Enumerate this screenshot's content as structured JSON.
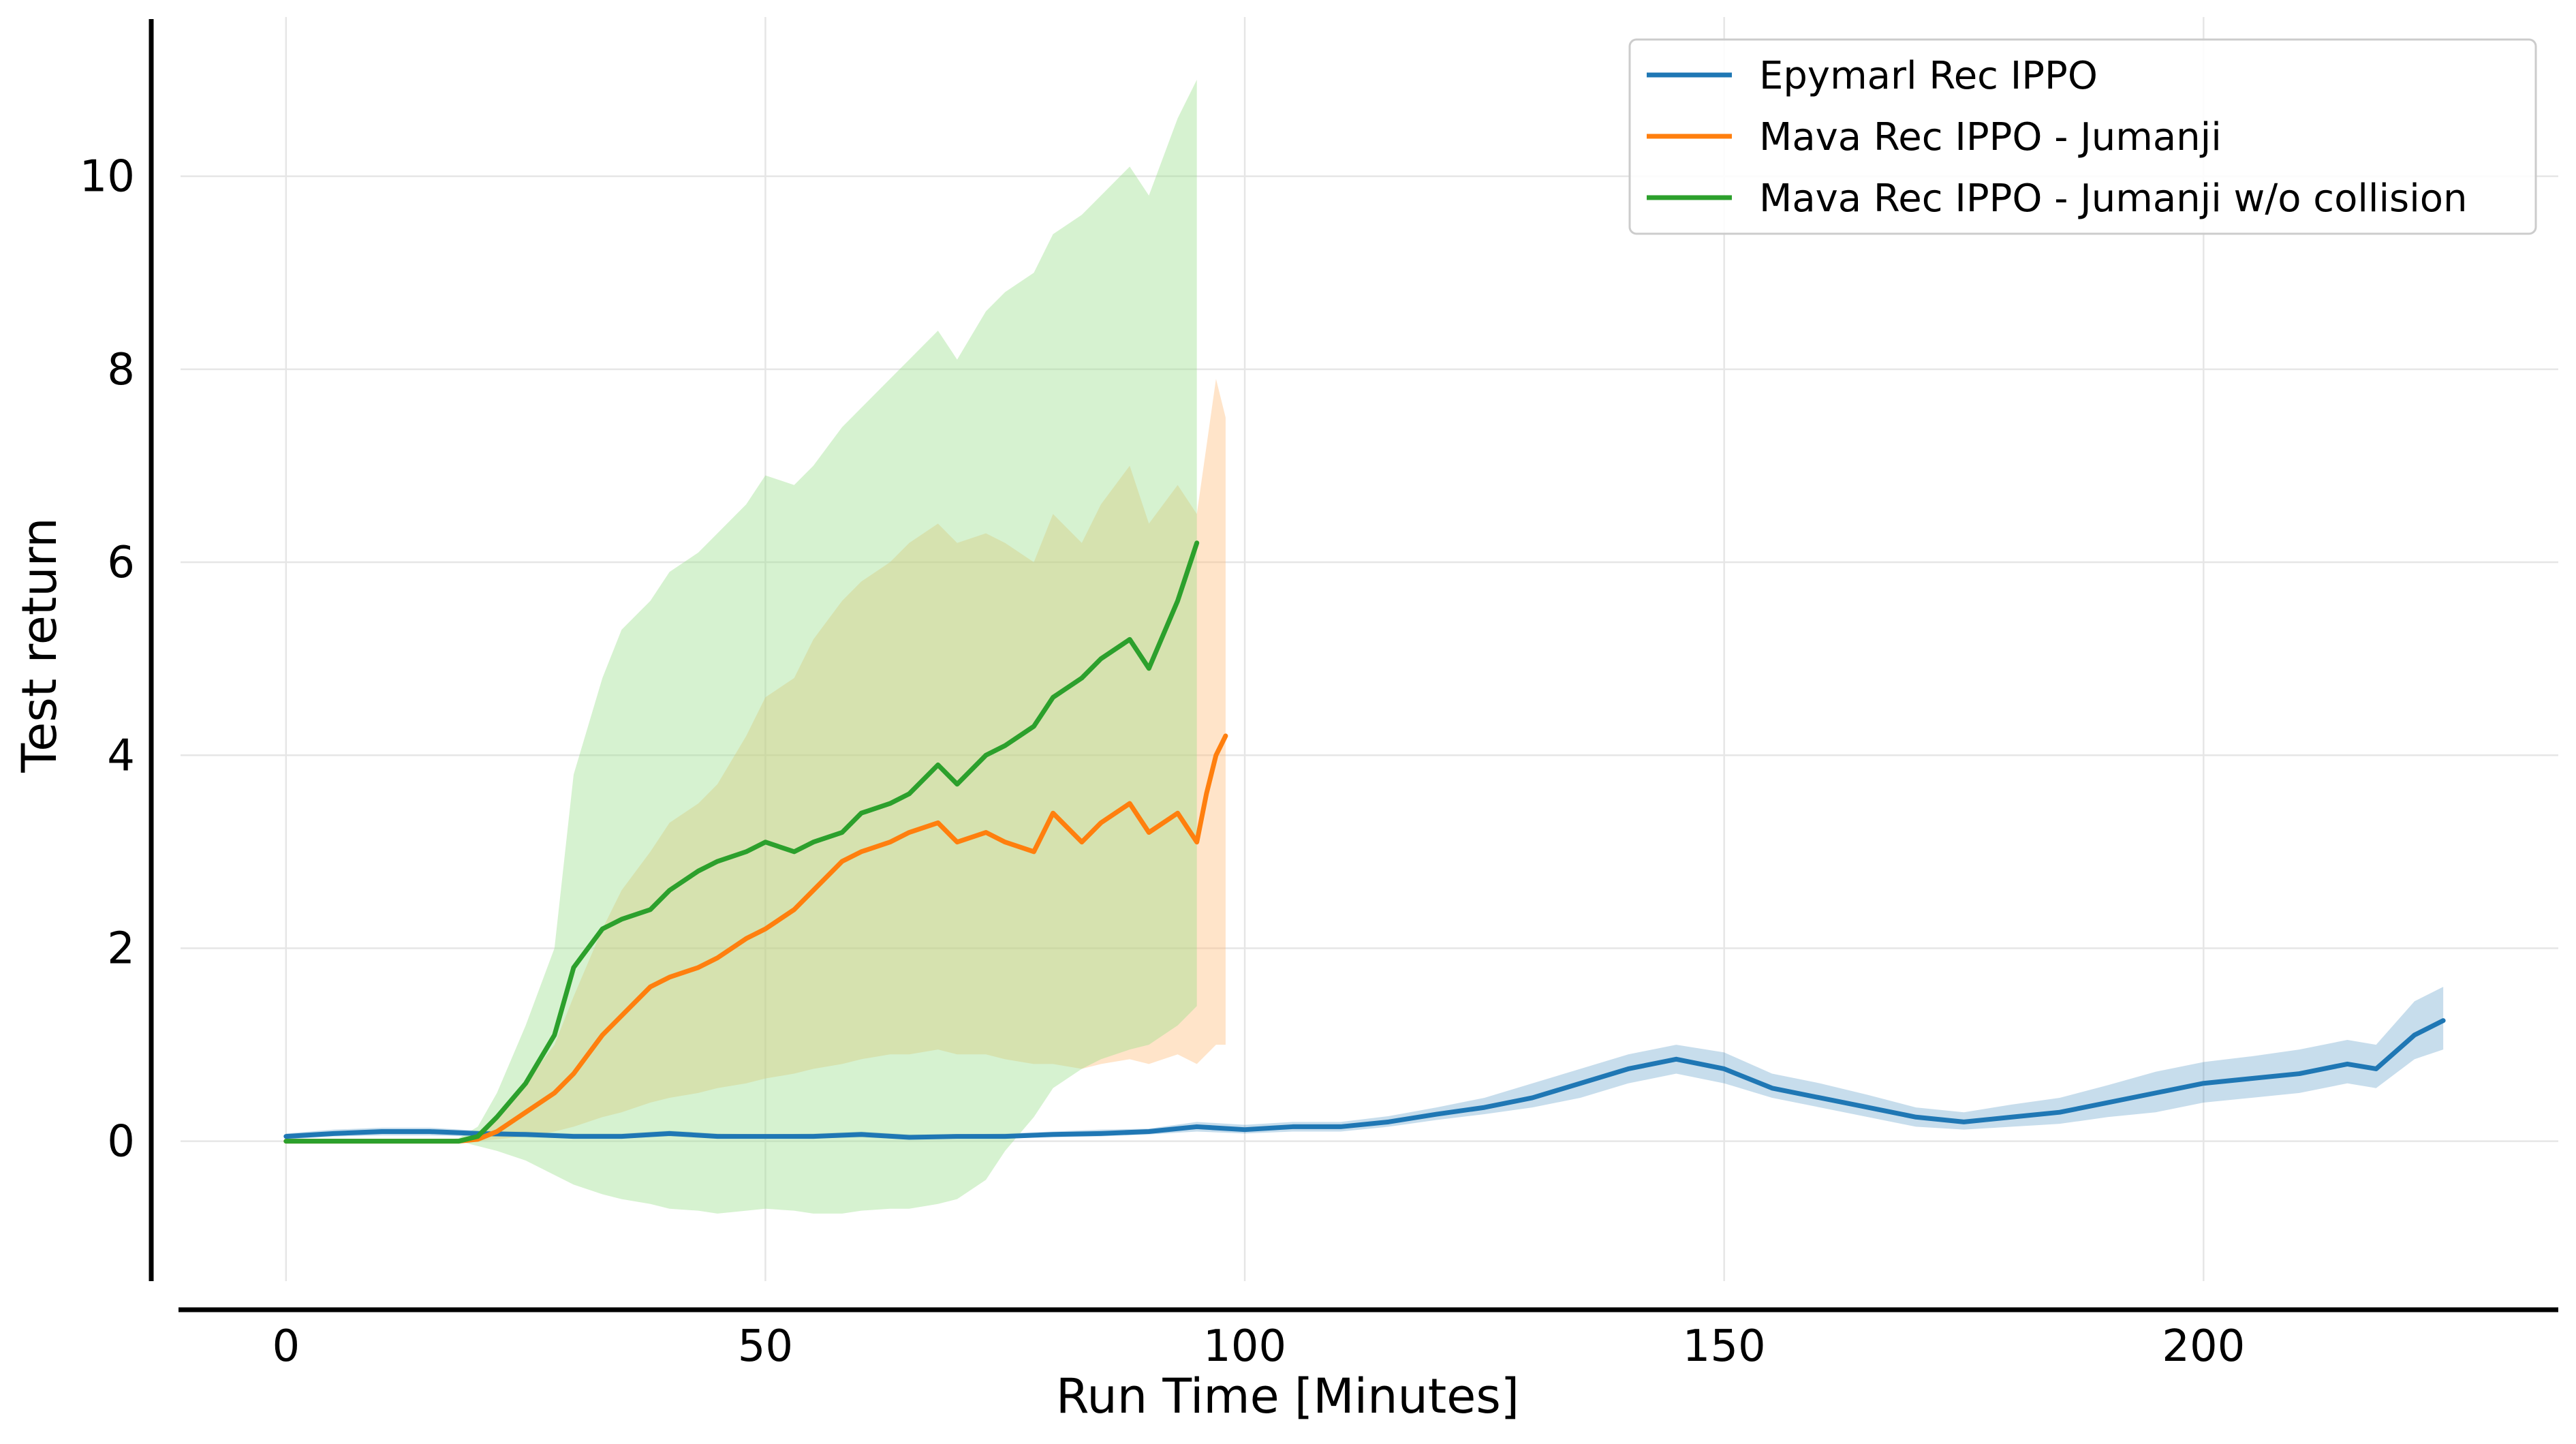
{
  "chart_data": {
    "type": "line",
    "title": "",
    "xlabel": "Run Time [Minutes]",
    "ylabel": "Test return",
    "xlim": [
      -11,
      237
    ],
    "ylim": [
      -1.45,
      11.65
    ],
    "xticks": [
      0,
      50,
      100,
      150,
      200
    ],
    "yticks": [
      0,
      2,
      4,
      6,
      8,
      10
    ],
    "grid": true,
    "legend_position": "top-right",
    "series": [
      {
        "name": "Epymarl Rec IPPO",
        "color": "#1f77b4",
        "band_color": "#1f77b4",
        "x": [
          0,
          5,
          10,
          15,
          20,
          25,
          30,
          35,
          40,
          45,
          50,
          55,
          60,
          65,
          70,
          75,
          80,
          85,
          90,
          95,
          100,
          105,
          110,
          115,
          120,
          125,
          130,
          135,
          140,
          145,
          150,
          155,
          160,
          165,
          170,
          175,
          180,
          185,
          190,
          195,
          200,
          205,
          210,
          215,
          218,
          222,
          225
        ],
        "y": [
          0.05,
          0.08,
          0.1,
          0.1,
          0.08,
          0.07,
          0.05,
          0.05,
          0.08,
          0.05,
          0.05,
          0.05,
          0.07,
          0.04,
          0.05,
          0.05,
          0.07,
          0.08,
          0.1,
          0.15,
          0.12,
          0.15,
          0.15,
          0.2,
          0.28,
          0.35,
          0.45,
          0.6,
          0.75,
          0.85,
          0.75,
          0.55,
          0.45,
          0.35,
          0.25,
          0.2,
          0.25,
          0.3,
          0.4,
          0.5,
          0.6,
          0.65,
          0.7,
          0.8,
          0.75,
          1.1,
          1.25
        ],
        "lower": [
          0.02,
          0.05,
          0.06,
          0.06,
          0.05,
          0.04,
          0.03,
          0.03,
          0.05,
          0.03,
          0.03,
          0.03,
          0.04,
          0.02,
          0.03,
          0.03,
          0.04,
          0.05,
          0.07,
          0.1,
          0.08,
          0.1,
          0.1,
          0.15,
          0.22,
          0.28,
          0.35,
          0.45,
          0.6,
          0.7,
          0.6,
          0.45,
          0.35,
          0.25,
          0.15,
          0.12,
          0.15,
          0.18,
          0.25,
          0.3,
          0.4,
          0.45,
          0.5,
          0.6,
          0.55,
          0.85,
          0.95
        ],
        "upper": [
          0.08,
          0.12,
          0.14,
          0.14,
          0.11,
          0.1,
          0.08,
          0.08,
          0.11,
          0.08,
          0.07,
          0.08,
          0.1,
          0.07,
          0.07,
          0.08,
          0.1,
          0.12,
          0.13,
          0.2,
          0.17,
          0.2,
          0.2,
          0.26,
          0.35,
          0.45,
          0.6,
          0.75,
          0.9,
          1.0,
          0.92,
          0.7,
          0.6,
          0.48,
          0.35,
          0.3,
          0.38,
          0.45,
          0.58,
          0.72,
          0.82,
          0.88,
          0.95,
          1.05,
          1.0,
          1.45,
          1.6
        ]
      },
      {
        "name": "Mava Rec IPPO - Jumanji",
        "color": "#ff7f0e",
        "band_color": "#ffbb78",
        "x": [
          0,
          5,
          10,
          15,
          18,
          20,
          22,
          25,
          28,
          30,
          33,
          35,
          38,
          40,
          43,
          45,
          48,
          50,
          53,
          55,
          58,
          60,
          63,
          65,
          68,
          70,
          73,
          75,
          78,
          80,
          83,
          85,
          88,
          90,
          93,
          95,
          96,
          97,
          98
        ],
        "y": [
          0.0,
          0.0,
          0.0,
          0.0,
          0.0,
          0.02,
          0.1,
          0.3,
          0.5,
          0.7,
          1.1,
          1.3,
          1.6,
          1.7,
          1.8,
          1.9,
          2.1,
          2.2,
          2.4,
          2.6,
          2.9,
          3.0,
          3.1,
          3.2,
          3.3,
          3.1,
          3.2,
          3.1,
          3.0,
          3.4,
          3.1,
          3.3,
          3.5,
          3.2,
          3.4,
          3.1,
          3.6,
          4.0,
          4.2
        ],
        "lower": [
          0.0,
          0.0,
          0.0,
          0.0,
          0.0,
          0.0,
          0.02,
          0.05,
          0.1,
          0.15,
          0.25,
          0.3,
          0.4,
          0.45,
          0.5,
          0.55,
          0.6,
          0.65,
          0.7,
          0.75,
          0.8,
          0.85,
          0.9,
          0.9,
          0.95,
          0.9,
          0.9,
          0.85,
          0.8,
          0.8,
          0.75,
          0.8,
          0.85,
          0.8,
          0.9,
          0.8,
          0.9,
          1.0,
          1.0
        ],
        "upper": [
          0.0,
          0.0,
          0.0,
          0.0,
          0.02,
          0.05,
          0.25,
          0.6,
          1.0,
          1.5,
          2.2,
          2.6,
          3.0,
          3.3,
          3.5,
          3.7,
          4.2,
          4.6,
          4.8,
          5.2,
          5.6,
          5.8,
          6.0,
          6.2,
          6.4,
          6.2,
          6.3,
          6.2,
          6.0,
          6.5,
          6.2,
          6.6,
          7.0,
          6.4,
          6.8,
          6.5,
          7.2,
          7.9,
          7.5
        ]
      },
      {
        "name": "Mava Rec IPPO - Jumanji w/o collision",
        "color": "#2ca02c",
        "band_color": "#98df8a",
        "x": [
          0,
          5,
          10,
          15,
          18,
          20,
          22,
          25,
          28,
          30,
          33,
          35,
          38,
          40,
          43,
          45,
          48,
          50,
          53,
          55,
          58,
          60,
          63,
          65,
          68,
          70,
          73,
          75,
          78,
          80,
          83,
          85,
          88,
          90,
          93,
          95
        ],
        "y": [
          0.0,
          0.0,
          0.0,
          0.0,
          0.0,
          0.05,
          0.25,
          0.6,
          1.1,
          1.8,
          2.2,
          2.3,
          2.4,
          2.6,
          2.8,
          2.9,
          3.0,
          3.1,
          3.0,
          3.1,
          3.2,
          3.4,
          3.5,
          3.6,
          3.9,
          3.7,
          4.0,
          4.1,
          4.3,
          4.6,
          4.8,
          5.0,
          5.2,
          4.9,
          5.6,
          6.2
        ],
        "lower": [
          0.0,
          0.0,
          0.0,
          0.0,
          0.0,
          -0.05,
          -0.1,
          -0.2,
          -0.35,
          -0.45,
          -0.55,
          -0.6,
          -0.65,
          -0.7,
          -0.72,
          -0.75,
          -0.72,
          -0.7,
          -0.72,
          -0.75,
          -0.75,
          -0.72,
          -0.7,
          -0.7,
          -0.65,
          -0.6,
          -0.4,
          -0.1,
          0.25,
          0.55,
          0.75,
          0.85,
          0.95,
          1.0,
          1.2,
          1.4
        ],
        "upper": [
          0.0,
          0.0,
          0.0,
          0.0,
          0.03,
          0.15,
          0.5,
          1.2,
          2.0,
          3.8,
          4.8,
          5.3,
          5.6,
          5.9,
          6.1,
          6.3,
          6.6,
          6.9,
          6.8,
          7.0,
          7.4,
          7.6,
          7.9,
          8.1,
          8.4,
          8.1,
          8.6,
          8.8,
          9.0,
          9.4,
          9.6,
          9.8,
          10.1,
          9.8,
          10.6,
          11.0
        ]
      }
    ]
  }
}
